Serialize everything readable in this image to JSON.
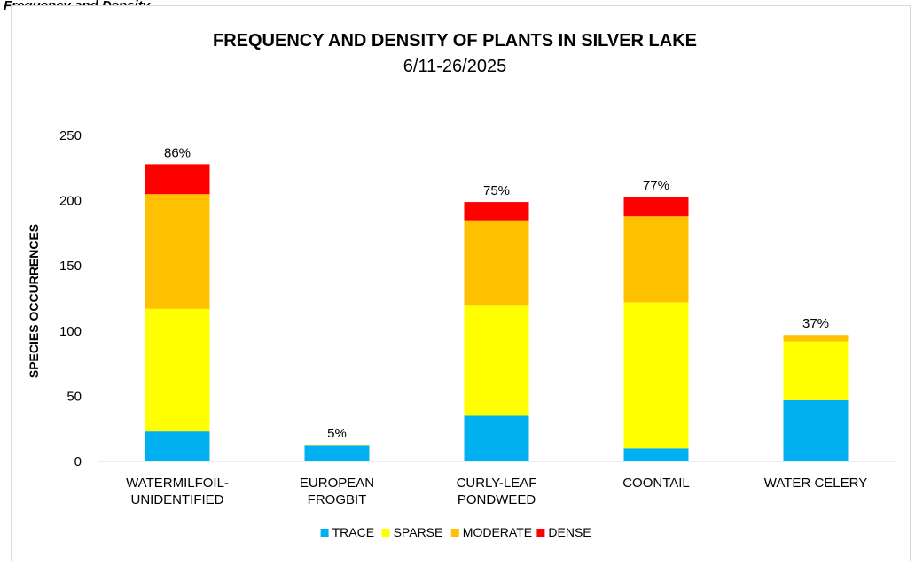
{
  "header_strip_text": "Frequency and Density",
  "chart_data": {
    "type": "bar",
    "stacked": true,
    "title": "FREQUENCY AND DENSITY OF PLANTS IN SILVER LAKE",
    "subtitle": "6/11-26/2025",
    "ylabel": "SPECIES  OCCURRENCES",
    "xlabel": "",
    "ylim": [
      0,
      250
    ],
    "yticks": [
      0,
      50,
      100,
      150,
      200,
      250
    ],
    "grid": false,
    "legend_position": "bottom",
    "categories": [
      [
        "WATERMILFOIL-",
        "UNIDENTIFIED"
      ],
      [
        "EUROPEAN",
        "FROGBIT"
      ],
      [
        "CURLY-LEAF",
        "PONDWEED"
      ],
      [
        "COONTAIL"
      ],
      [
        "WATER CELERY"
      ]
    ],
    "series": [
      {
        "name": "TRACE",
        "color": "#00b0f0",
        "values": [
          23,
          12,
          35,
          10,
          47
        ]
      },
      {
        "name": "SPARSE",
        "color": "#ffff00",
        "values": [
          94,
          1,
          85,
          112,
          45
        ]
      },
      {
        "name": "MODERATE",
        "color": "#ffc000",
        "values": [
          88,
          0,
          65,
          66,
          5
        ]
      },
      {
        "name": "DENSE",
        "color": "#ff0000",
        "values": [
          23,
          0,
          14,
          15,
          0
        ]
      }
    ],
    "data_labels": [
      "86%",
      "5%",
      "75%",
      "77%",
      "37%"
    ]
  }
}
